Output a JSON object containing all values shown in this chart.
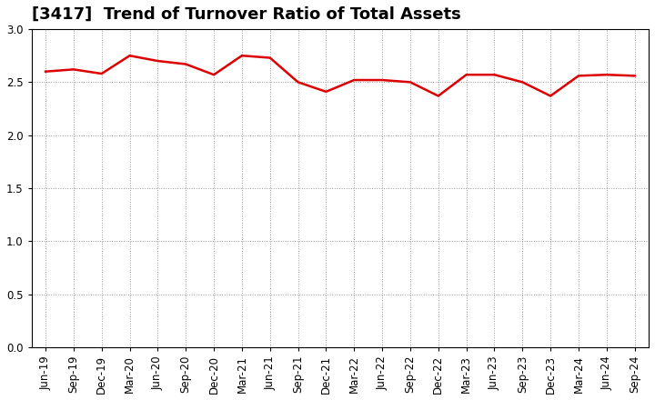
{
  "title": "[3417]  Trend of Turnover Ratio of Total Assets",
  "x_labels": [
    "Jun-19",
    "Sep-19",
    "Dec-19",
    "Mar-20",
    "Jun-20",
    "Sep-20",
    "Dec-20",
    "Mar-21",
    "Jun-21",
    "Sep-21",
    "Dec-21",
    "Mar-22",
    "Jun-22",
    "Sep-22",
    "Dec-22",
    "Mar-23",
    "Jun-23",
    "Sep-23",
    "Dec-23",
    "Mar-24",
    "Jun-24",
    "Sep-24"
  ],
  "y_values": [
    2.6,
    2.62,
    2.58,
    2.75,
    2.7,
    2.67,
    2.57,
    2.75,
    2.73,
    2.5,
    2.41,
    2.52,
    2.52,
    2.5,
    2.37,
    2.57,
    2.57,
    2.5,
    2.37,
    2.56,
    2.57,
    2.56
  ],
  "line_color": "#dd0000",
  "line_width": 1.8,
  "ylim": [
    0.0,
    3.0
  ],
  "yticks": [
    0.0,
    0.5,
    1.0,
    1.5,
    2.0,
    2.5,
    3.0
  ],
  "background_color": "#ffffff",
  "grid_color": "#999999",
  "title_fontsize": 13,
  "tick_fontsize": 8.5
}
